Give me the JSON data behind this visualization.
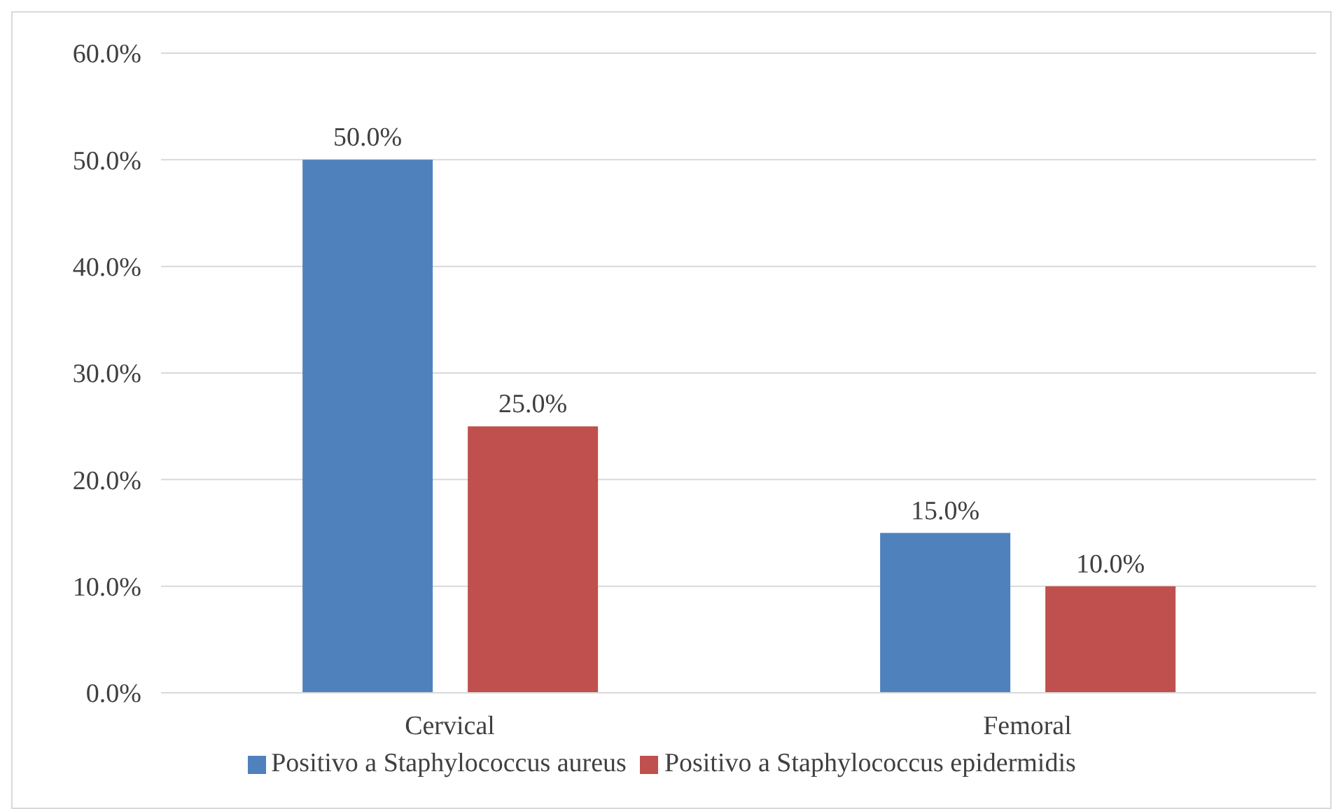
{
  "chart_data": {
    "type": "bar",
    "categories": [
      "Cervical",
      "Femoral"
    ],
    "series": [
      {
        "name": "Positivo a Staphylococcus aureus",
        "color": "#4f81bd",
        "values": [
          50,
          15
        ],
        "value_labels": [
          "50.0%",
          "15.0%"
        ]
      },
      {
        "name": "Positivo a Staphylococcus epidermidis",
        "color": "#c0504d",
        "values": [
          25,
          10
        ],
        "value_labels": [
          "25.0%",
          "10.0%"
        ]
      }
    ],
    "ylim": [
      0,
      60
    ],
    "yticks": [
      {
        "value": 0,
        "label": "0.0%"
      },
      {
        "value": 10,
        "label": "10.0%"
      },
      {
        "value": 20,
        "label": "20.0%"
      },
      {
        "value": 30,
        "label": "30.0%"
      },
      {
        "value": 40,
        "label": "40.0%"
      },
      {
        "value": 50,
        "label": "50.0%"
      },
      {
        "value": 60,
        "label": "60.0%"
      }
    ],
    "grid": "y",
    "legend": "bottom"
  }
}
